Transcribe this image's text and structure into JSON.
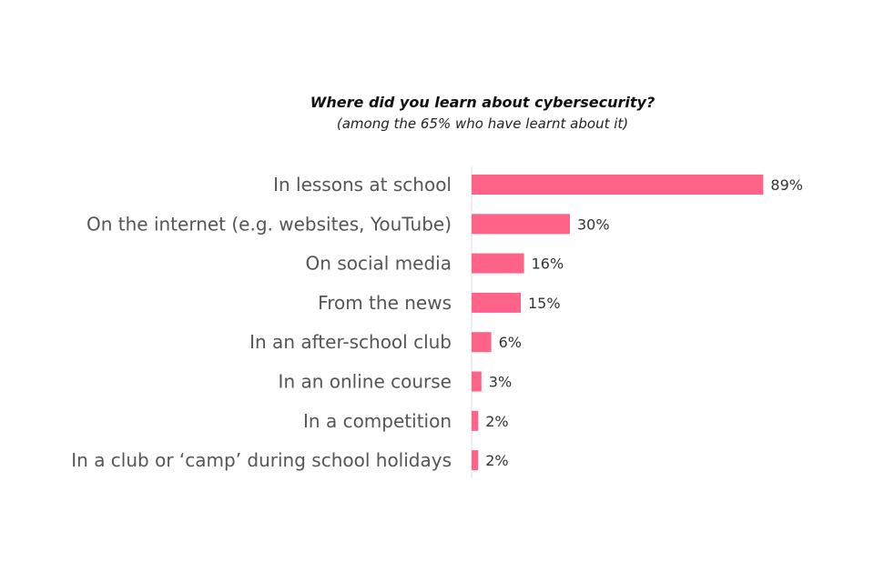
{
  "chart_data": {
    "type": "bar",
    "orientation": "horizontal",
    "title": "Where did you learn about cybersecurity?",
    "subtitle": "(among the 65% who have learnt about it)",
    "categories": [
      "In lessons at school",
      "On the internet (e.g. websites, YouTube)",
      "On social media",
      "From the news",
      "In an after-school club",
      "In an online course",
      "In a competition",
      "In a club or ‘camp’ during school holidays"
    ],
    "values": [
      89,
      30,
      16,
      15,
      6,
      3,
      2,
      2
    ],
    "value_labels": [
      "89%",
      "30%",
      "16%",
      "15%",
      "6%",
      "3%",
      "2%",
      "2%"
    ],
    "unit": "%",
    "xlim": [
      0,
      100
    ],
    "grid": false,
    "legend": "none",
    "bar_color": "#FF6388"
  }
}
